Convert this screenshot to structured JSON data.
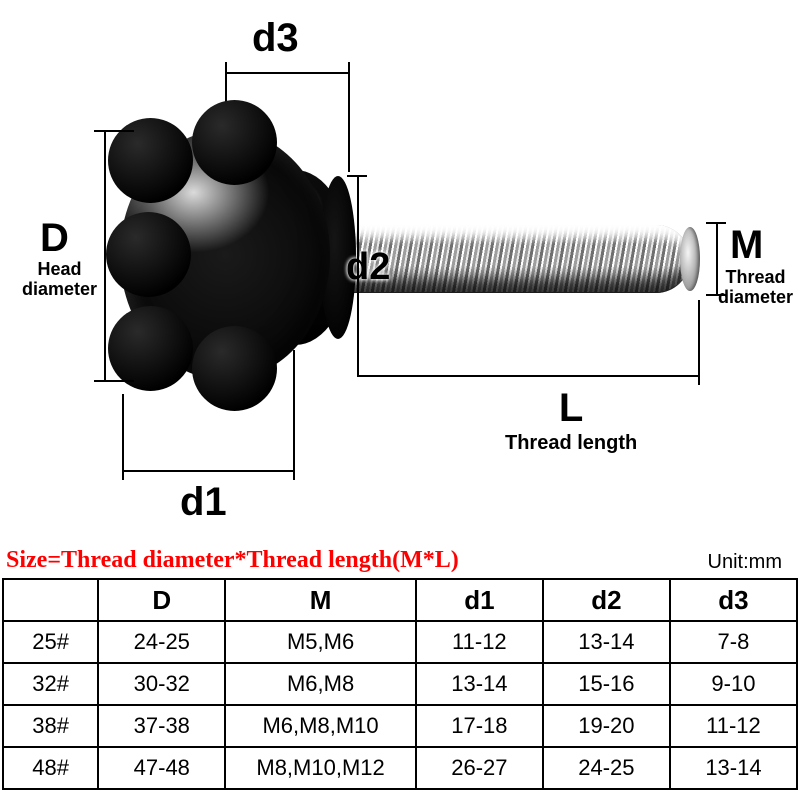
{
  "diagram": {
    "labels": {
      "D": "D",
      "D_sub": "Head\ndiameter",
      "M": "M",
      "M_sub": "Thread\ndiameter",
      "L": "L",
      "L_sub": "Thread length",
      "d1": "d1",
      "d2": "d2",
      "d3": "d3"
    },
    "colors": {
      "knob": "#000000",
      "shaft_light": "#e8e8e8",
      "shaft_dark": "#6f6f6f",
      "background": "#ffffff",
      "line": "#000000"
    }
  },
  "caption": {
    "formula": "Size=Thread diameter*Thread length(M*L)",
    "formula_color": "#ff0000",
    "unit": "Unit:mm",
    "unit_color": "#000000"
  },
  "table": {
    "columns": [
      "",
      "D",
      "M",
      "d1",
      "d2",
      "d3"
    ],
    "col_widths_pct": [
      12,
      16,
      24,
      16,
      16,
      16
    ],
    "header_fontsize": 26,
    "cell_fontsize": 22,
    "border_color": "#000000",
    "rows": [
      [
        "25#",
        "24-25",
        "M5,M6",
        "11-12",
        "13-14",
        "7-8"
      ],
      [
        "32#",
        "30-32",
        "M6,M8",
        "13-14",
        "15-16",
        "9-10"
      ],
      [
        "38#",
        "37-38",
        "M6,M8,M10",
        "17-18",
        "19-20",
        "11-12"
      ],
      [
        "48#",
        "47-48",
        "M8,M10,M12",
        "26-27",
        "24-25",
        "13-14"
      ]
    ]
  }
}
